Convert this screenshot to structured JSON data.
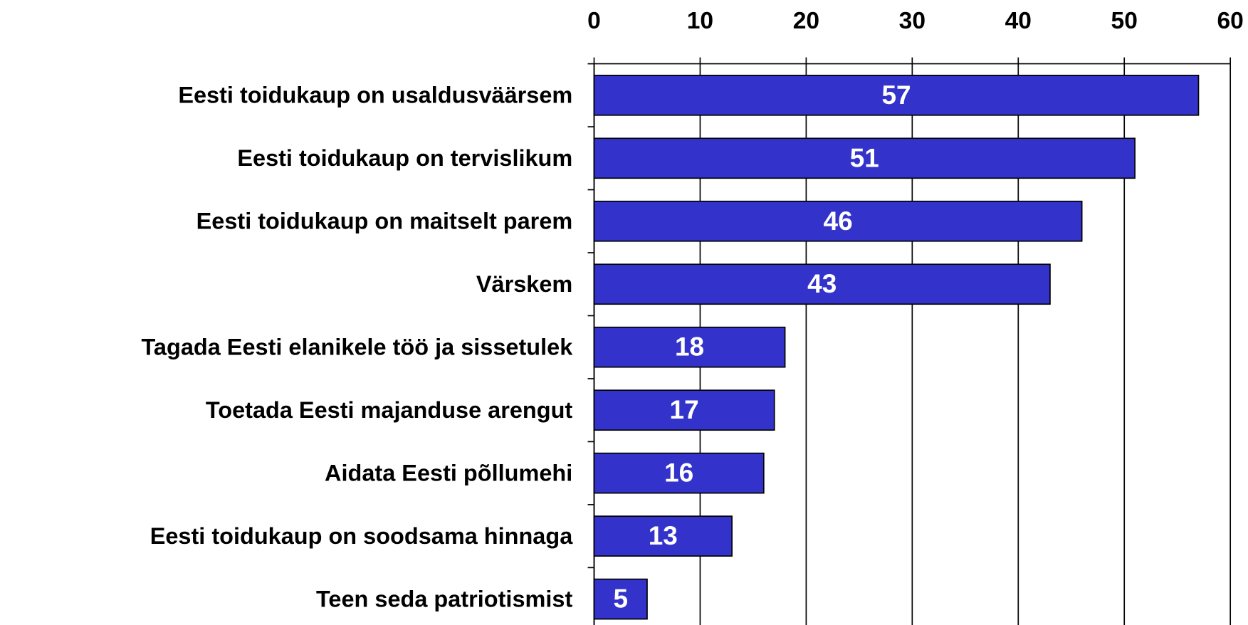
{
  "chart_data": {
    "type": "bar",
    "orientation": "horizontal",
    "categories": [
      "Eesti toidukaup on usaldusväärsem",
      "Eesti toidukaup on tervislikum",
      "Eesti toidukaup on maitselt parem",
      "Värskem",
      "Tagada Eesti elanikele töö ja sissetulek",
      "Toetada Eesti majanduse arengut",
      "Aidata Eesti põllumehi",
      "Eesti toidukaup on soodsama hinnaga",
      "Teen seda patriotismist"
    ],
    "values": [
      57,
      51,
      46,
      43,
      18,
      17,
      16,
      13,
      5
    ],
    "color": "#3333cc",
    "xlim": [
      0,
      60
    ],
    "xticks": [
      0,
      10,
      20,
      30,
      40,
      50,
      60
    ],
    "grid": true
  }
}
